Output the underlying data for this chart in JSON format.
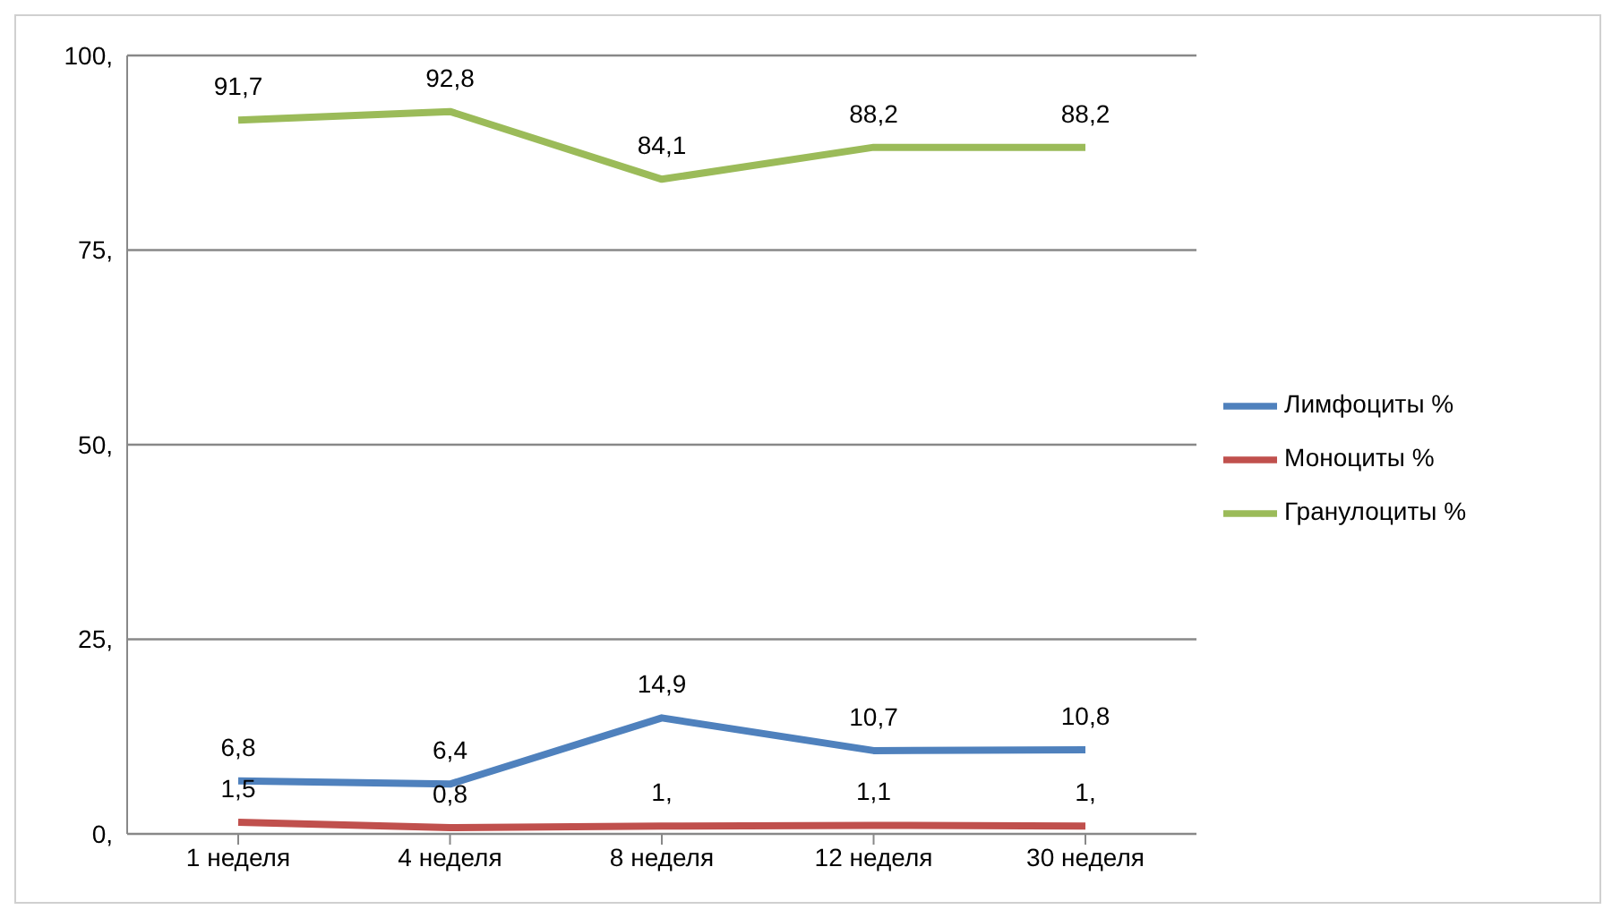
{
  "chart_data": {
    "type": "line",
    "categories": [
      "1 неделя",
      "4 неделя",
      "8 неделя",
      "12 неделя",
      "30 неделя"
    ],
    "series": [
      {
        "name": "Лимфоциты %",
        "color": "#4f81bd",
        "values": [
          6.8,
          6.4,
          14.9,
          10.7,
          10.8
        ],
        "value_labels": [
          "6,8",
          "6,4",
          "14,9",
          "10,7",
          "10,8"
        ]
      },
      {
        "name": "Моноциты %",
        "color": "#c0504d",
        "values": [
          1.5,
          0.8,
          1,
          1.1,
          1
        ],
        "value_labels": [
          "1,5",
          "0,8",
          "1,",
          "1,1",
          "1,"
        ]
      },
      {
        "name": "Гранулоциты %",
        "color": "#9bbb59",
        "values": [
          91.7,
          92.8,
          84.1,
          88.2,
          88.2
        ],
        "value_labels": [
          "91,7",
          "92,8",
          "84,1",
          "88,2",
          "88,2"
        ]
      }
    ],
    "ylim": [
      0,
      100
    ],
    "yticks": [
      {
        "value": 0,
        "label": "0,"
      },
      {
        "value": 25,
        "label": "25,"
      },
      {
        "value": 50,
        "label": "50,"
      },
      {
        "value": 75,
        "label": "75,"
      },
      {
        "value": 100,
        "label": "100,"
      }
    ],
    "grid": "y",
    "legend": "right",
    "marker": "none",
    "line_style": "solid"
  }
}
